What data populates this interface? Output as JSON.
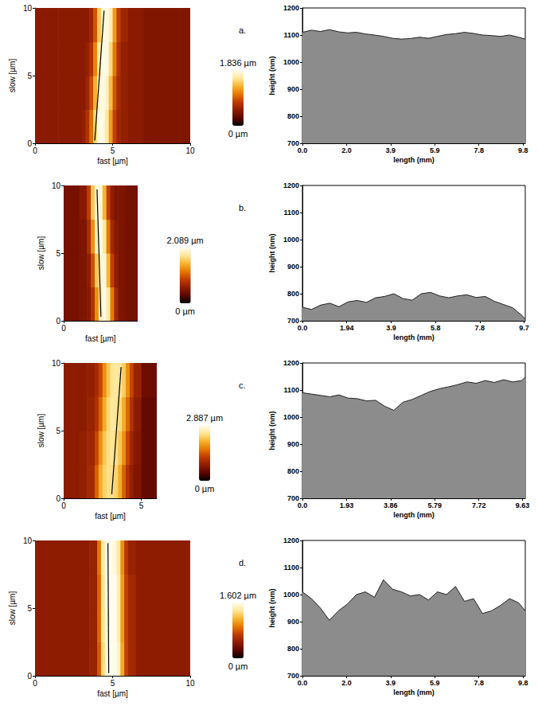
{
  "chart_data": [
    {
      "type": "heatmap",
      "title": "a.",
      "x_label": "fast [µm]",
      "y_label": "slow [µm]",
      "xlim": [
        0,
        10
      ],
      "ylim": [
        0,
        10
      ],
      "xticks": [
        0,
        5,
        10
      ],
      "yticks": [
        0,
        5,
        10
      ],
      "grid": false,
      "x_edges": [
        0,
        1.5,
        3,
        3.25,
        3.5,
        3.75,
        4,
        4.25,
        4.5,
        4.75,
        5,
        5.25,
        5.5,
        6,
        7,
        8.5,
        10
      ],
      "y_edges": [
        0,
        2.5,
        5,
        7.5,
        10
      ],
      "cells": [
        [
          0.5,
          0.5,
          0.55,
          0.7,
          1.0,
          1.5,
          1.8,
          1.8,
          1.6,
          1.2,
          0.8,
          0.6,
          0.55,
          0.5,
          0.45,
          0.45
        ],
        [
          0.5,
          0.5,
          0.5,
          0.6,
          0.85,
          1.3,
          1.75,
          1.8,
          1.7,
          1.35,
          0.9,
          0.65,
          0.55,
          0.5,
          0.45,
          0.45
        ],
        [
          0.5,
          0.5,
          0.5,
          0.55,
          0.7,
          1.1,
          1.6,
          1.8,
          1.8,
          1.5,
          1.05,
          0.7,
          0.55,
          0.5,
          0.45,
          0.45
        ],
        [
          0.5,
          0.5,
          0.5,
          0.5,
          0.6,
          0.9,
          1.4,
          1.75,
          1.8,
          1.65,
          1.2,
          0.8,
          0.6,
          0.5,
          0.45,
          0.45
        ]
      ],
      "colorbar": {
        "range": [
          0,
          1.836
        ],
        "ticks": [
          {
            "value": 1.836,
            "label": "1.836 µm"
          },
          {
            "value": 0,
            "label": "0 µm"
          }
        ]
      },
      "profile_line": {
        "x": [
          3.85,
          4.45
        ],
        "y": [
          0.2,
          9.8
        ]
      }
    },
    {
      "type": "area",
      "x_label": "length (mm)",
      "y_label": "height (nm)",
      "color": "#8c8c8c",
      "grid": false,
      "xlim": [
        0,
        9.9
      ],
      "ylim": [
        700,
        1200
      ],
      "xticks": [
        {
          "value": 0,
          "label": "0.0"
        },
        {
          "value": 1.96,
          "label": "2.0"
        },
        {
          "value": 3.92,
          "label": "3.9"
        },
        {
          "value": 5.88,
          "label": "5.9"
        },
        {
          "value": 7.84,
          "label": "7.8"
        },
        9.8
      ],
      "yticks": [
        700,
        800,
        900,
        1000,
        1100,
        1200
      ],
      "x": [
        0,
        0.4,
        0.8,
        1.2,
        1.6,
        2.0,
        2.4,
        2.8,
        3.2,
        3.6,
        4.0,
        4.4,
        4.8,
        5.2,
        5.6,
        6.0,
        6.4,
        6.8,
        7.2,
        7.6,
        8.0,
        8.4,
        8.8,
        9.2,
        9.6,
        9.9
      ],
      "values": [
        1110,
        1118,
        1113,
        1120,
        1112,
        1108,
        1110,
        1104,
        1100,
        1095,
        1088,
        1085,
        1087,
        1092,
        1088,
        1095,
        1102,
        1105,
        1110,
        1106,
        1100,
        1098,
        1095,
        1100,
        1092,
        1085
      ]
    },
    {
      "type": "heatmap",
      "title": "b.",
      "x_label": "fast [µm]",
      "y_label": "slow [µm]",
      "xlim": [
        0,
        4.75
      ],
      "ylim": [
        0,
        10
      ],
      "xticks": [
        0
      ],
      "yticks": [
        0,
        5,
        10
      ],
      "grid": false,
      "x_edges": [
        0,
        1,
        1.5,
        1.75,
        2,
        2.25,
        2.5,
        2.75,
        3,
        3.25,
        3.5,
        4,
        4.75
      ],
      "y_edges": [
        0,
        2.5,
        5,
        7.5,
        10
      ],
      "cells": [
        [
          0.45,
          0.5,
          0.55,
          0.8,
          1.3,
          1.9,
          2.05,
          1.8,
          1.2,
          0.7,
          0.5,
          0.45
        ],
        [
          0.45,
          0.5,
          0.6,
          1.0,
          1.6,
          2.0,
          2.0,
          1.5,
          0.9,
          0.6,
          0.5,
          0.45
        ],
        [
          0.45,
          0.5,
          0.75,
          1.3,
          1.9,
          2.05,
          1.8,
          1.2,
          0.7,
          0.55,
          0.5,
          0.45
        ],
        [
          0.45,
          0.55,
          0.9,
          1.6,
          2.0,
          2.0,
          1.5,
          0.9,
          0.6,
          0.5,
          0.5,
          0.45
        ]
      ],
      "colorbar": {
        "range": [
          0,
          2.089
        ],
        "ticks": [
          {
            "value": 2.089,
            "label": "2.089 µm"
          },
          {
            "value": 0,
            "label": "0 µm"
          }
        ]
      },
      "profile_line": {
        "x": [
          2.4,
          2.15
        ],
        "y": [
          0.3,
          9.7
        ]
      }
    },
    {
      "type": "area",
      "x_label": "length (mm)",
      "y_label": "height (nm)",
      "color": "#8c8c8c",
      "grid": false,
      "xlim": [
        0,
        9.75
      ],
      "ylim": [
        700,
        1200
      ],
      "xticks": [
        {
          "value": 0,
          "label": "0.0"
        },
        1.94,
        {
          "value": 3.88,
          "label": "3.9"
        },
        {
          "value": 5.82,
          "label": "5.8"
        },
        {
          "value": 7.76,
          "label": "7.8"
        },
        9.7
      ],
      "yticks": [
        700,
        800,
        900,
        1000,
        1100,
        1200
      ],
      "x": [
        0,
        0.4,
        0.8,
        1.2,
        1.6,
        2.0,
        2.4,
        2.8,
        3.2,
        3.6,
        4.0,
        4.4,
        4.8,
        5.2,
        5.6,
        6.0,
        6.4,
        6.8,
        7.2,
        7.6,
        8.0,
        8.4,
        8.8,
        9.2,
        9.6,
        9.75
      ],
      "values": [
        750,
        742,
        758,
        765,
        752,
        770,
        775,
        768,
        785,
        790,
        800,
        782,
        776,
        800,
        805,
        792,
        785,
        792,
        796,
        786,
        790,
        772,
        760,
        748,
        720,
        705
      ]
    },
    {
      "type": "heatmap",
      "title": "c.",
      "x_label": "fast [µm]",
      "y_label": "slow [µm]",
      "xlim": [
        0,
        6
      ],
      "ylim": [
        0,
        10
      ],
      "xticks": [
        0,
        5
      ],
      "yticks": [
        0,
        5,
        10
      ],
      "grid": false,
      "x_edges": [
        0,
        1,
        1.5,
        2,
        2.25,
        2.5,
        2.75,
        3,
        3.25,
        3.5,
        3.75,
        4,
        4.25,
        4.5,
        5,
        6
      ],
      "y_edges": [
        0,
        2.5,
        5,
        7.5,
        10
      ],
      "cells": [
        [
          0.8,
          0.85,
          1.0,
          1.5,
          2.0,
          2.3,
          2.4,
          2.4,
          2.3,
          2.0,
          1.5,
          1.1,
          0.85,
          0.7,
          0.5
        ],
        [
          0.8,
          0.85,
          0.95,
          1.3,
          1.8,
          2.2,
          2.4,
          2.45,
          2.4,
          2.2,
          1.8,
          1.3,
          0.95,
          0.75,
          0.5
        ],
        [
          0.8,
          0.8,
          0.9,
          1.1,
          1.5,
          2.0,
          2.35,
          2.5,
          2.45,
          2.35,
          2.0,
          1.55,
          1.1,
          0.8,
          0.5
        ],
        [
          0.8,
          0.8,
          0.85,
          1.0,
          1.3,
          1.8,
          2.2,
          2.45,
          2.5,
          2.45,
          2.25,
          1.8,
          1.3,
          0.9,
          0.55
        ]
      ],
      "colorbar": {
        "range": [
          0,
          2.887
        ],
        "ticks": [
          {
            "value": 2.887,
            "label": "2.887 µm"
          },
          {
            "value": 0,
            "label": "0 µm"
          }
        ]
      },
      "profile_line": {
        "x": [
          3.1,
          3.7
        ],
        "y": [
          0.3,
          9.7
        ]
      }
    },
    {
      "type": "area",
      "x_label": "length (mm)",
      "y_label": "height (nm)",
      "color": "#8c8c8c",
      "grid": false,
      "xlim": [
        0,
        9.75
      ],
      "ylim": [
        700,
        1200
      ],
      "xticks": [
        {
          "value": 0,
          "label": "0.0"
        },
        1.93,
        3.86,
        5.79,
        7.72,
        9.63
      ],
      "yticks": [
        700,
        800,
        900,
        1000,
        1100,
        1200
      ],
      "x": [
        0,
        0.4,
        0.8,
        1.2,
        1.6,
        2.0,
        2.4,
        2.8,
        3.2,
        3.6,
        4.0,
        4.4,
        4.8,
        5.2,
        5.6,
        6.0,
        6.4,
        6.8,
        7.2,
        7.6,
        8.0,
        8.4,
        8.8,
        9.2,
        9.6,
        9.75
      ],
      "values": [
        1090,
        1085,
        1080,
        1075,
        1082,
        1070,
        1068,
        1060,
        1062,
        1040,
        1025,
        1055,
        1065,
        1080,
        1095,
        1105,
        1112,
        1120,
        1130,
        1125,
        1135,
        1128,
        1138,
        1130,
        1135,
        1148
      ]
    },
    {
      "type": "heatmap",
      "title": "d.",
      "x_label": "fast [µm]",
      "y_label": "slow [µm]",
      "xlim": [
        0,
        10
      ],
      "ylim": [
        0,
        10
      ],
      "xticks": [
        0,
        5,
        10
      ],
      "yticks": [
        0,
        5,
        10
      ],
      "grid": false,
      "x_edges": [
        0,
        2,
        3.5,
        4,
        4.25,
        4.5,
        4.75,
        5,
        5.25,
        5.5,
        5.75,
        6,
        6.5,
        8,
        10
      ],
      "y_edges": [
        0,
        2.5,
        5,
        7.5,
        10
      ],
      "cells": [
        [
          0.45,
          0.45,
          0.5,
          0.8,
          1.3,
          1.55,
          1.6,
          1.6,
          1.5,
          1.1,
          0.7,
          0.55,
          0.45,
          0.45
        ],
        [
          0.45,
          0.45,
          0.5,
          0.85,
          1.35,
          1.55,
          1.6,
          1.6,
          1.45,
          1.05,
          0.7,
          0.55,
          0.45,
          0.45
        ],
        [
          0.45,
          0.45,
          0.5,
          0.85,
          1.35,
          1.58,
          1.6,
          1.6,
          1.45,
          1.05,
          0.7,
          0.55,
          0.45,
          0.45
        ],
        [
          0.45,
          0.45,
          0.5,
          0.9,
          1.4,
          1.58,
          1.6,
          1.55,
          1.4,
          1.0,
          0.65,
          0.5,
          0.45,
          0.45
        ]
      ],
      "colorbar": {
        "range": [
          0,
          1.602
        ],
        "ticks": [
          {
            "value": 1.602,
            "label": "1.602 µm"
          },
          {
            "value": 0,
            "label": "0 µm"
          }
        ]
      },
      "profile_line": {
        "x": [
          4.75,
          4.7
        ],
        "y": [
          0.2,
          9.8
        ]
      }
    },
    {
      "type": "area",
      "x_label": "length (mm)",
      "y_label": "height (nm)",
      "color": "#8c8c8c",
      "grid": false,
      "xlim": [
        0,
        9.9
      ],
      "ylim": [
        700,
        1200
      ],
      "xticks": [
        {
          "value": 0,
          "label": "0.0"
        },
        {
          "value": 1.96,
          "label": "2.0"
        },
        {
          "value": 3.92,
          "label": "3.9"
        },
        {
          "value": 5.88,
          "label": "5.9"
        },
        {
          "value": 7.84,
          "label": "7.8"
        },
        9.8
      ],
      "yticks": [
        700,
        800,
        900,
        1000,
        1100,
        1200
      ],
      "x": [
        0,
        0.4,
        0.8,
        1.2,
        1.6,
        2.0,
        2.4,
        2.8,
        3.2,
        3.6,
        4.0,
        4.4,
        4.8,
        5.2,
        5.6,
        6.0,
        6.4,
        6.8,
        7.2,
        7.6,
        8.0,
        8.4,
        8.8,
        9.2,
        9.6,
        9.9
      ],
      "values": [
        1010,
        985,
        950,
        905,
        940,
        965,
        1000,
        1010,
        990,
        1055,
        1020,
        1010,
        995,
        1000,
        980,
        1010,
        1000,
        1030,
        975,
        985,
        930,
        940,
        960,
        985,
        970,
        940
      ]
    }
  ]
}
